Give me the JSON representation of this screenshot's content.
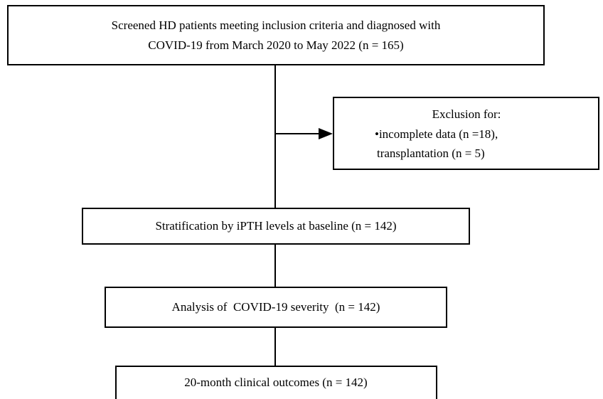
{
  "nodes": [
    {
      "lines": [
        "Screened HD patients meeting inclusion criteria and diagnosed with",
        "COVID-19 from March 2020 to May 2022 (n = 165)"
      ]
    },
    {
      "lines": [
        "Exclusion for:",
        "•incomplete data (n =18),",
        "transplantation (n = 5)"
      ]
    },
    {
      "lines": [
        "Stratification by iPTH levels at baseline (n = 142)"
      ]
    },
    {
      "lines": [
        "Analysis of  COVID-19 severity  (n = 142)"
      ]
    },
    {
      "lines": [
        "20-month clinical outcomes (n = 142)"
      ]
    }
  ]
}
